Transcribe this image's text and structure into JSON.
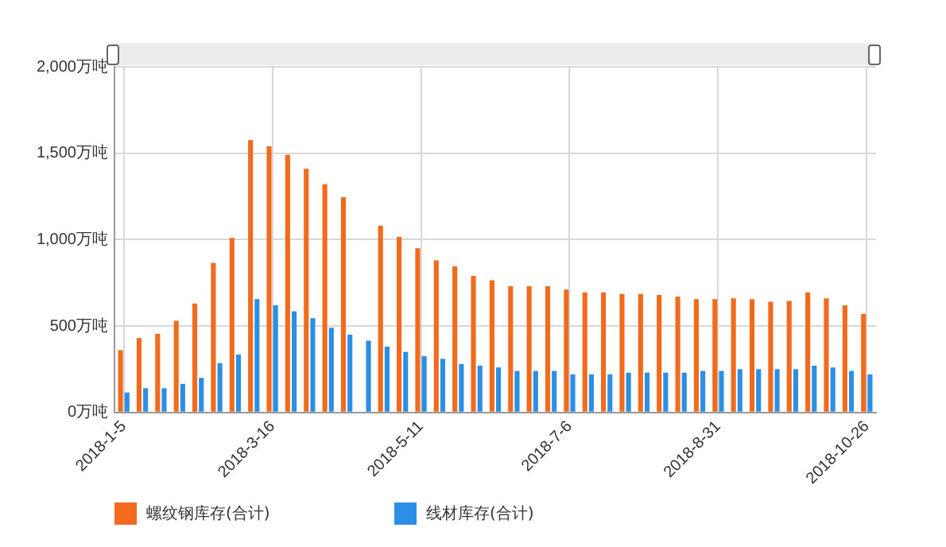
{
  "chart_data": {
    "type": "bar",
    "categories": [
      "2018-1-5",
      null,
      null,
      null,
      null,
      null,
      null,
      null,
      "2018-3-16",
      null,
      null,
      null,
      null,
      null,
      null,
      null,
      "2018-5-11",
      null,
      null,
      null,
      null,
      null,
      null,
      null,
      "2018-7-6",
      null,
      null,
      null,
      null,
      null,
      null,
      null,
      "2018-8-31",
      null,
      null,
      null,
      null,
      null,
      null,
      null,
      "2018-10-26"
    ],
    "series": [
      {
        "name": "螺纹钢库存(合计)",
        "color": "#f26b1d",
        "values": [
          360,
          430,
          455,
          530,
          630,
          865,
          1010,
          1575,
          1540,
          1490,
          1410,
          1320,
          1245,
          null,
          1080,
          1015,
          950,
          880,
          845,
          790,
          765,
          730,
          730,
          730,
          710,
          695,
          695,
          685,
          685,
          680,
          670,
          655,
          655,
          660,
          655,
          640,
          645,
          695,
          660,
          620,
          570
        ]
      },
      {
        "name": "线材库存(合计)",
        "color": "#2b8fe5",
        "values": [
          115,
          140,
          140,
          165,
          200,
          285,
          335,
          655,
          620,
          585,
          545,
          490,
          450,
          415,
          380,
          350,
          325,
          310,
          280,
          270,
          260,
          240,
          240,
          240,
          220,
          220,
          220,
          230,
          230,
          230,
          230,
          240,
          240,
          250,
          250,
          250,
          250,
          270,
          260,
          240,
          220
        ]
      }
    ],
    "ylim": [
      0,
      2000
    ],
    "yticks": [
      {
        "value": 0,
        "label": "0万吨"
      },
      {
        "value": 500,
        "label": "500万吨"
      },
      {
        "value": 1000,
        "label": "1,000万吨"
      },
      {
        "value": 1500,
        "label": "1,500万吨"
      },
      {
        "value": 2000,
        "label": "2,000万吨"
      }
    ],
    "grid": true,
    "legend": "bottom"
  }
}
